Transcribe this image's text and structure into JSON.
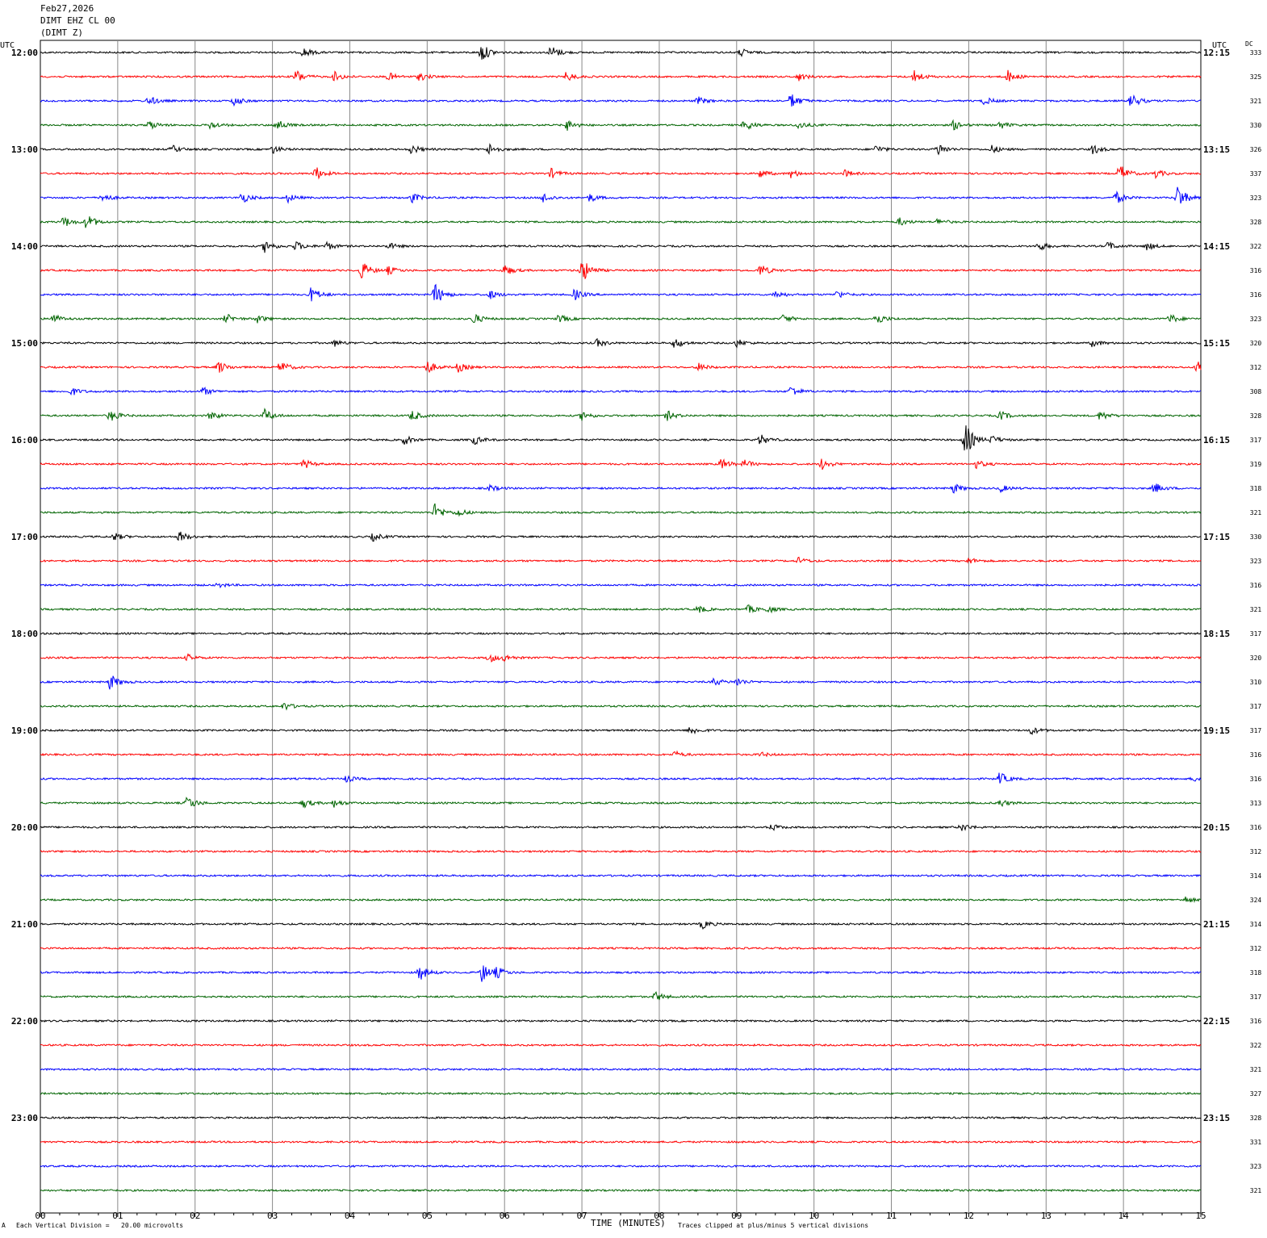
{
  "header": {
    "date": "Feb27,2026",
    "station": "DIMT EHZ CL 00",
    "component": "(DIMT Z)"
  },
  "footer": {
    "left_mark": "A",
    "vertical_division": "Each Vertical Division =   20.00 microvolts",
    "clip_note": "Traces clipped at plus/minus 5 vertical divisions"
  },
  "chart_data": {
    "type": "line",
    "title": "",
    "xlabel": "TIME (MINUTES)",
    "ylabel": "",
    "left_axis_label": "UTC",
    "right_axis_label": "UTC",
    "dc_label": "DC",
    "x_ticks": [
      "00",
      "01",
      "02",
      "03",
      "04",
      "05",
      "06",
      "07",
      "08",
      "09",
      "10",
      "11",
      "12",
      "13",
      "14",
      "15"
    ],
    "xlim": [
      0,
      15
    ],
    "grid": true,
    "colors": [
      "#000000",
      "#ff0000",
      "#0000ff",
      "#006400"
    ],
    "hour_labels_left": [
      "12:00",
      "13:00",
      "14:00",
      "15:00",
      "16:00",
      "17:00",
      "18:00",
      "19:00",
      "20:00",
      "21:00",
      "22:00",
      "23:00"
    ],
    "hour_labels_right": [
      "12:15",
      "13:15",
      "14:15",
      "15:15",
      "16:15",
      "17:15",
      "18:15",
      "19:15",
      "20:15",
      "21:15",
      "22:15",
      "23:15"
    ],
    "dc_values": [
      333,
      325,
      321,
      330,
      326,
      337,
      323,
      328,
      322,
      316,
      316,
      323,
      320,
      312,
      308,
      328,
      317,
      319,
      318,
      321,
      330,
      323,
      316,
      321,
      317,
      320,
      310,
      317,
      317,
      316,
      316,
      313,
      316,
      312,
      314,
      324,
      314,
      312,
      318,
      317,
      316,
      322,
      321,
      327,
      328,
      331,
      323,
      321
    ],
    "events": [
      [
        [
          3.4,
          6
        ],
        [
          5.7,
          12
        ],
        [
          6.6,
          9
        ],
        [
          9.05,
          5
        ]
      ],
      [
        [
          3.3,
          9
        ],
        [
          3.8,
          6
        ],
        [
          4.5,
          5
        ],
        [
          4.9,
          5
        ],
        [
          6.8,
          6
        ],
        [
          9.8,
          5
        ],
        [
          11.3,
          8
        ],
        [
          12.5,
          8
        ]
      ],
      [
        [
          1.4,
          6
        ],
        [
          2.5,
          6
        ],
        [
          8.5,
          5
        ],
        [
          9.7,
          10
        ],
        [
          12.2,
          5
        ],
        [
          14.1,
          9
        ]
      ],
      [
        [
          1.4,
          6
        ],
        [
          2.2,
          5
        ],
        [
          3.05,
          8
        ],
        [
          6.8,
          7
        ],
        [
          9.1,
          8
        ],
        [
          9.8,
          5
        ],
        [
          11.8,
          6
        ],
        [
          12.4,
          5
        ]
      ],
      [
        [
          1.7,
          5
        ],
        [
          3.0,
          5
        ],
        [
          4.8,
          6
        ],
        [
          5.8,
          7
        ],
        [
          10.8,
          5
        ],
        [
          11.6,
          8
        ],
        [
          12.3,
          5
        ],
        [
          13.6,
          6
        ]
      ],
      [
        [
          3.55,
          9
        ],
        [
          6.6,
          6
        ],
        [
          9.3,
          5
        ],
        [
          9.7,
          5
        ],
        [
          10.4,
          4
        ],
        [
          13.95,
          12
        ],
        [
          14.4,
          6
        ]
      ],
      [
        [
          0.8,
          6
        ],
        [
          2.6,
          7
        ],
        [
          3.2,
          5
        ],
        [
          4.8,
          6
        ],
        [
          6.5,
          6
        ],
        [
          7.1,
          5
        ],
        [
          13.9,
          8
        ],
        [
          14.7,
          16
        ]
      ],
      [
        [
          0.6,
          10
        ],
        [
          0.3,
          7
        ],
        [
          11.1,
          5
        ],
        [
          11.6,
          4
        ]
      ],
      [
        [
          2.9,
          8
        ],
        [
          3.3,
          6
        ],
        [
          3.7,
          5
        ],
        [
          4.5,
          4
        ],
        [
          12.9,
          6
        ],
        [
          13.8,
          5
        ],
        [
          14.3,
          5
        ]
      ],
      [
        [
          4.15,
          12
        ],
        [
          4.5,
          5
        ],
        [
          6.0,
          7
        ],
        [
          7.0,
          16
        ],
        [
          9.3,
          8
        ]
      ],
      [
        [
          3.5,
          10
        ],
        [
          5.1,
          14
        ],
        [
          5.8,
          6
        ],
        [
          6.9,
          7
        ],
        [
          9.5,
          5
        ],
        [
          10.3,
          5
        ]
      ],
      [
        [
          0.15,
          7
        ],
        [
          2.4,
          6
        ],
        [
          2.8,
          5
        ],
        [
          5.6,
          7
        ],
        [
          6.7,
          5
        ],
        [
          9.6,
          5
        ],
        [
          10.8,
          8
        ],
        [
          14.6,
          6
        ]
      ],
      [
        [
          3.8,
          4
        ],
        [
          7.2,
          5
        ],
        [
          8.2,
          7
        ],
        [
          9.0,
          5
        ],
        [
          13.6,
          5
        ]
      ],
      [
        [
          2.3,
          8
        ],
        [
          3.1,
          8
        ],
        [
          5.0,
          8
        ],
        [
          5.4,
          6
        ],
        [
          8.5,
          5
        ],
        [
          14.95,
          7
        ]
      ],
      [
        [
          0.4,
          5
        ],
        [
          2.1,
          5
        ],
        [
          9.7,
          7
        ]
      ],
      [
        [
          0.9,
          8
        ],
        [
          2.2,
          6
        ],
        [
          2.9,
          8
        ],
        [
          4.8,
          7
        ],
        [
          7.0,
          6
        ],
        [
          8.1,
          6
        ],
        [
          12.4,
          6
        ],
        [
          13.7,
          6
        ]
      ],
      [
        [
          4.7,
          6
        ],
        [
          5.6,
          6
        ],
        [
          9.3,
          7
        ],
        [
          11.95,
          22
        ],
        [
          12.3,
          5
        ]
      ],
      [
        [
          3.4,
          6
        ],
        [
          8.8,
          7
        ],
        [
          9.1,
          5
        ],
        [
          10.1,
          7
        ],
        [
          12.1,
          5
        ]
      ],
      [
        [
          5.8,
          4
        ],
        [
          11.8,
          6
        ],
        [
          12.4,
          5
        ],
        [
          14.4,
          7
        ]
      ],
      [
        [
          5.1,
          11
        ],
        [
          5.4,
          5
        ]
      ],
      [
        [
          0.95,
          5
        ],
        [
          1.8,
          7
        ],
        [
          4.3,
          5
        ]
      ],
      [
        [
          9.8,
          4
        ],
        [
          12.0,
          4
        ]
      ],
      [
        [
          2.3,
          3
        ]
      ],
      [
        [
          8.5,
          5
        ],
        [
          9.15,
          5
        ],
        [
          9.4,
          4
        ]
      ],
      [],
      [
        [
          1.9,
          4
        ],
        [
          5.8,
          6
        ],
        [
          6.0,
          4
        ]
      ],
      [
        [
          0.9,
          10
        ],
        [
          8.7,
          5
        ],
        [
          9.0,
          5
        ]
      ],
      [
        [
          3.15,
          5
        ]
      ],
      [
        [
          8.4,
          6
        ],
        [
          12.8,
          5
        ]
      ],
      [
        [
          8.2,
          4
        ],
        [
          9.3,
          3
        ]
      ],
      [
        [
          3.95,
          4
        ],
        [
          12.4,
          8
        ],
        [
          14.9,
          4
        ]
      ],
      [
        [
          1.9,
          9
        ],
        [
          3.4,
          6
        ],
        [
          3.8,
          5
        ],
        [
          12.4,
          5
        ]
      ],
      [
        [
          9.45,
          4
        ],
        [
          11.9,
          5
        ]
      ],
      [],
      [],
      [
        [
          14.8,
          4
        ]
      ],
      [
        [
          8.55,
          6
        ]
      ],
      [],
      [
        [
          4.9,
          10
        ],
        [
          5.7,
          13
        ],
        [
          5.9,
          6
        ]
      ],
      [
        [
          7.95,
          6
        ]
      ],
      [],
      [],
      [],
      [],
      [],
      [],
      [],
      []
    ]
  }
}
